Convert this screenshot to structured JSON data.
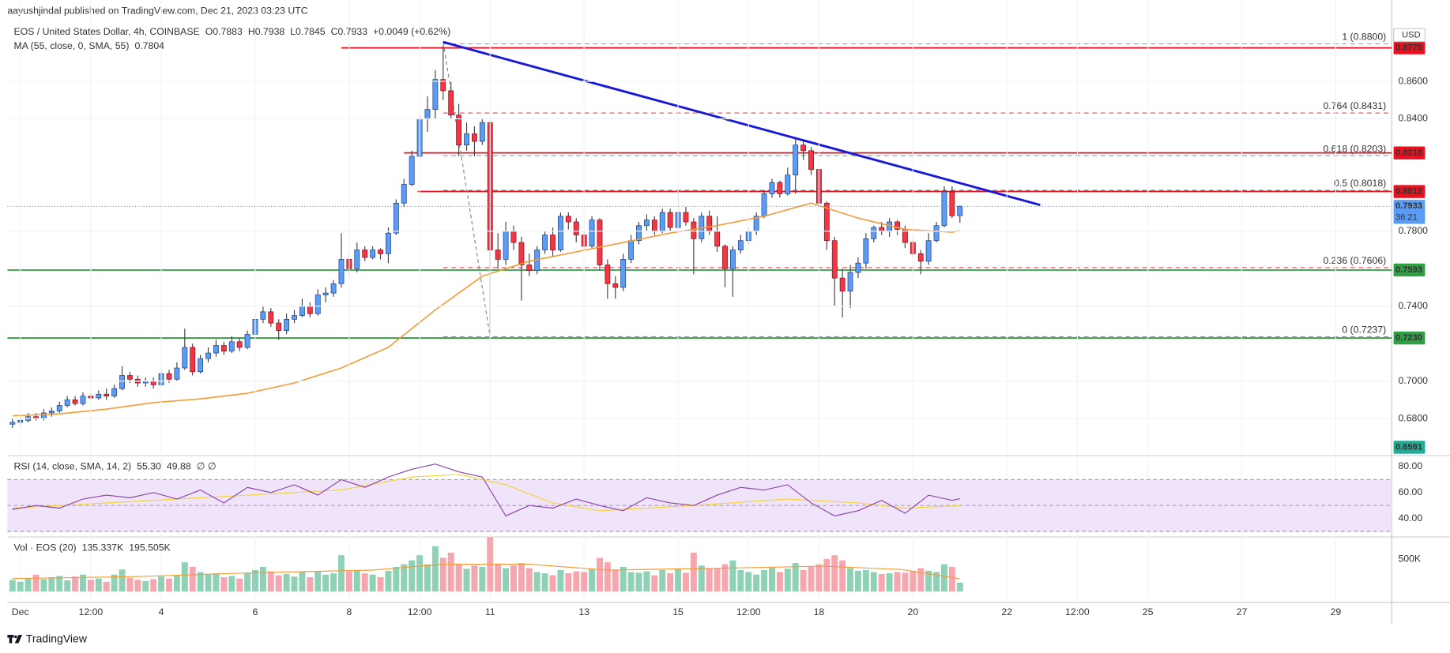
{
  "header": {
    "published": "aayushjindal published on TradingView.com, Dec 21, 2023 03:23 UTC"
  },
  "footer": {
    "brand": "TradingView"
  },
  "chart_data": {
    "type": "candlestick",
    "title": "EOS / United States Dollar, 4h, COINBASE",
    "ohlc_text": [
      "O0.7883",
      "H0.7938",
      "L0.7845",
      "C0.7933"
    ],
    "change_text": "+0.0049 (+0.62%)",
    "currency": "USD",
    "xlim": [
      -6.6,
      700.6
    ],
    "xticks": [
      {
        "value": 0,
        "label": "Dec"
      },
      {
        "value": 36,
        "label": "12:00"
      },
      {
        "value": 72,
        "label": "4"
      },
      {
        "value": 120,
        "label": "6"
      },
      {
        "value": 168,
        "label": "8"
      },
      {
        "value": 204,
        "label": "12:00"
      },
      {
        "value": 240,
        "label": "11"
      },
      {
        "value": 288,
        "label": "13"
      },
      {
        "value": 336,
        "label": "15"
      },
      {
        "value": 372,
        "label": "12:00"
      },
      {
        "value": 408,
        "label": "18"
      },
      {
        "value": 456,
        "label": "20"
      },
      {
        "value": 504,
        "label": "22"
      },
      {
        "value": 540,
        "label": "12:00"
      },
      {
        "value": 576,
        "label": "25"
      },
      {
        "value": 624,
        "label": "27"
      },
      {
        "value": 672,
        "label": "29"
      }
    ],
    "ylim": [
      0.6617,
      0.8837
    ],
    "yticks": [
      {
        "value": 0.86,
        "label": "0.8600"
      },
      {
        "value": 0.84,
        "label": "0.8400"
      },
      {
        "value": 0.78,
        "label": "0.7800"
      },
      {
        "value": 0.74,
        "label": "0.7400"
      },
      {
        "value": 0.7,
        "label": "0.7000"
      },
      {
        "value": 0.68,
        "label": "0.6800"
      }
    ],
    "up_color": "#5b9cf6",
    "down_color": "#f23645",
    "x": [
      -4,
      0,
      4,
      8,
      12,
      16,
      20,
      24,
      28,
      32,
      36,
      40,
      44,
      48,
      52,
      56,
      60,
      64,
      68,
      72,
      76,
      80,
      84,
      88,
      92,
      96,
      100,
      104,
      108,
      112,
      116,
      120,
      124,
      128,
      132,
      136,
      140,
      144,
      148,
      152,
      156,
      160,
      164,
      168,
      172,
      176,
      180,
      184,
      188,
      192,
      196,
      200,
      204,
      208,
      212,
      216,
      220,
      224,
      228,
      232,
      236,
      240,
      244,
      248,
      252,
      256,
      260,
      264,
      268,
      272,
      276,
      280,
      284,
      288,
      292,
      296,
      300,
      304,
      308,
      312,
      316,
      320,
      324,
      328,
      332,
      336,
      340,
      344,
      348,
      352,
      356,
      360,
      364,
      368,
      372,
      376,
      380,
      384,
      388,
      392,
      396,
      400,
      404,
      408,
      412,
      416,
      420,
      424,
      428,
      432,
      436,
      440,
      444,
      448,
      452,
      456,
      460,
      464,
      468,
      472,
      476,
      480
    ],
    "candles": [
      [
        0.677,
        0.68,
        0.675,
        0.678
      ],
      [
        0.678,
        0.681,
        0.676,
        0.679
      ],
      [
        0.679,
        0.683,
        0.678,
        0.681
      ],
      [
        0.681,
        0.683,
        0.679,
        0.68
      ],
      [
        0.68,
        0.685,
        0.679,
        0.683
      ],
      [
        0.683,
        0.686,
        0.681,
        0.684
      ],
      [
        0.684,
        0.689,
        0.683,
        0.687
      ],
      [
        0.687,
        0.692,
        0.686,
        0.69
      ],
      [
        0.69,
        0.692,
        0.687,
        0.688
      ],
      [
        0.688,
        0.694,
        0.687,
        0.692
      ],
      [
        0.692,
        0.694,
        0.69,
        0.691
      ],
      [
        0.691,
        0.695,
        0.69,
        0.693
      ],
      [
        0.693,
        0.696,
        0.69,
        0.692
      ],
      [
        0.692,
        0.698,
        0.691,
        0.696
      ],
      [
        0.696,
        0.708,
        0.695,
        0.703
      ],
      [
        0.703,
        0.705,
        0.699,
        0.701
      ],
      [
        0.701,
        0.703,
        0.697,
        0.699
      ],
      [
        0.699,
        0.702,
        0.697,
        0.7
      ],
      [
        0.7,
        0.702,
        0.696,
        0.698
      ],
      [
        0.698,
        0.707,
        0.697,
        0.704
      ],
      [
        0.704,
        0.706,
        0.699,
        0.701
      ],
      [
        0.701,
        0.71,
        0.7,
        0.707
      ],
      [
        0.707,
        0.728,
        0.706,
        0.718
      ],
      [
        0.718,
        0.72,
        0.703,
        0.705
      ],
      [
        0.705,
        0.714,
        0.704,
        0.712
      ],
      [
        0.712,
        0.718,
        0.71,
        0.715
      ],
      [
        0.715,
        0.722,
        0.713,
        0.719
      ],
      [
        0.719,
        0.721,
        0.714,
        0.716
      ],
      [
        0.716,
        0.724,
        0.715,
        0.721
      ],
      [
        0.721,
        0.723,
        0.716,
        0.718
      ],
      [
        0.718,
        0.727,
        0.717,
        0.725
      ],
      [
        0.725,
        0.736,
        0.724,
        0.733
      ],
      [
        0.733,
        0.74,
        0.731,
        0.737
      ],
      [
        0.737,
        0.739,
        0.729,
        0.731
      ],
      [
        0.731,
        0.733,
        0.722,
        0.727
      ],
      [
        0.727,
        0.736,
        0.725,
        0.733
      ],
      [
        0.733,
        0.738,
        0.731,
        0.735
      ],
      [
        0.735,
        0.744,
        0.734,
        0.74
      ],
      [
        0.74,
        0.742,
        0.734,
        0.736
      ],
      [
        0.736,
        0.749,
        0.735,
        0.746
      ],
      [
        0.746,
        0.75,
        0.742,
        0.747
      ],
      [
        0.747,
        0.754,
        0.745,
        0.752
      ],
      [
        0.752,
        0.779,
        0.75,
        0.765
      ],
      [
        0.765,
        0.768,
        0.756,
        0.76
      ],
      [
        0.76,
        0.774,
        0.758,
        0.77
      ],
      [
        0.77,
        0.772,
        0.764,
        0.766
      ],
      [
        0.766,
        0.772,
        0.765,
        0.77
      ],
      [
        0.77,
        0.771,
        0.765,
        0.768
      ],
      [
        0.768,
        0.782,
        0.763,
        0.779
      ],
      [
        0.779,
        0.797,
        0.778,
        0.795
      ],
      [
        0.795,
        0.808,
        0.793,
        0.805
      ],
      [
        0.805,
        0.823,
        0.804,
        0.82
      ],
      [
        0.82,
        0.842,
        0.819,
        0.84
      ],
      [
        0.84,
        0.852,
        0.833,
        0.845
      ],
      [
        0.845,
        0.866,
        0.84,
        0.861
      ],
      [
        0.861,
        0.879,
        0.85,
        0.855
      ],
      [
        0.855,
        0.86,
        0.84,
        0.842
      ],
      [
        0.842,
        0.848,
        0.82,
        0.826
      ],
      [
        0.826,
        0.838,
        0.823,
        0.832
      ],
      [
        0.832,
        0.836,
        0.82,
        0.828
      ],
      [
        0.828,
        0.84,
        0.826,
        0.838
      ],
      [
        0.838,
        0.839,
        0.724,
        0.77
      ],
      [
        0.77,
        0.779,
        0.76,
        0.765
      ],
      [
        0.765,
        0.785,
        0.762,
        0.78
      ],
      [
        0.78,
        0.783,
        0.77,
        0.774
      ],
      [
        0.774,
        0.777,
        0.743,
        0.762
      ],
      [
        0.762,
        0.768,
        0.756,
        0.759
      ],
      [
        0.759,
        0.772,
        0.757,
        0.77
      ],
      [
        0.77,
        0.78,
        0.768,
        0.778
      ],
      [
        0.778,
        0.782,
        0.766,
        0.77
      ],
      [
        0.77,
        0.79,
        0.769,
        0.788
      ],
      [
        0.788,
        0.79,
        0.781,
        0.785
      ],
      [
        0.785,
        0.787,
        0.774,
        0.778
      ],
      [
        0.778,
        0.78,
        0.77,
        0.772
      ],
      [
        0.772,
        0.788,
        0.771,
        0.786
      ],
      [
        0.786,
        0.787,
        0.759,
        0.762
      ],
      [
        0.762,
        0.765,
        0.744,
        0.752
      ],
      [
        0.752,
        0.756,
        0.744,
        0.75
      ],
      [
        0.75,
        0.768,
        0.748,
        0.765
      ],
      [
        0.765,
        0.778,
        0.763,
        0.775
      ],
      [
        0.775,
        0.785,
        0.773,
        0.783
      ],
      [
        0.783,
        0.789,
        0.78,
        0.786
      ],
      [
        0.786,
        0.788,
        0.778,
        0.78
      ],
      [
        0.78,
        0.792,
        0.779,
        0.79
      ],
      [
        0.79,
        0.792,
        0.78,
        0.782
      ],
      [
        0.782,
        0.801,
        0.78,
        0.79
      ],
      [
        0.79,
        0.793,
        0.783,
        0.785
      ],
      [
        0.785,
        0.787,
        0.757,
        0.776
      ],
      [
        0.776,
        0.79,
        0.774,
        0.788
      ],
      [
        0.788,
        0.791,
        0.778,
        0.78
      ],
      [
        0.78,
        0.788,
        0.769,
        0.772
      ],
      [
        0.772,
        0.773,
        0.75,
        0.76
      ],
      [
        0.76,
        0.772,
        0.745,
        0.77
      ],
      [
        0.77,
        0.778,
        0.768,
        0.775
      ],
      [
        0.775,
        0.782,
        0.773,
        0.78
      ],
      [
        0.78,
        0.79,
        0.778,
        0.788
      ],
      [
        0.788,
        0.802,
        0.787,
        0.8
      ],
      [
        0.8,
        0.808,
        0.798,
        0.806
      ],
      [
        0.806,
        0.807,
        0.798,
        0.8
      ],
      [
        0.8,
        0.814,
        0.799,
        0.81
      ],
      [
        0.81,
        0.829,
        0.8,
        0.826
      ],
      [
        0.826,
        0.829,
        0.818,
        0.823
      ],
      [
        0.823,
        0.825,
        0.81,
        0.813
      ],
      [
        0.813,
        0.814,
        0.792,
        0.795
      ],
      [
        0.795,
        0.796,
        0.77,
        0.775
      ],
      [
        0.775,
        0.777,
        0.74,
        0.755
      ],
      [
        0.755,
        0.76,
        0.734,
        0.748
      ],
      [
        0.748,
        0.762,
        0.739,
        0.758
      ],
      [
        0.758,
        0.766,
        0.755,
        0.763
      ],
      [
        0.763,
        0.779,
        0.76,
        0.776
      ],
      [
        0.776,
        0.783,
        0.774,
        0.782
      ],
      [
        0.782,
        0.785,
        0.778,
        0.78
      ],
      [
        0.78,
        0.787,
        0.777,
        0.785
      ],
      [
        0.785,
        0.786,
        0.778,
        0.781
      ],
      [
        0.781,
        0.783,
        0.771,
        0.774
      ],
      [
        0.774,
        0.776,
        0.766,
        0.768
      ],
      [
        0.768,
        0.77,
        0.757,
        0.764
      ],
      [
        0.764,
        0.779,
        0.762,
        0.775
      ],
      [
        0.775,
        0.785,
        0.774,
        0.783
      ],
      [
        0.783,
        0.804,
        0.782,
        0.801
      ],
      [
        0.801,
        0.804,
        0.787,
        0.7883
      ],
      [
        0.7883,
        0.7938,
        0.7845,
        0.7933
      ]
    ],
    "ma": {
      "name": "MA (55, close, 0, SMA, 55)",
      "last_label": "0.7804",
      "color": "#f39c3a",
      "x": [
        -4,
        20,
        44,
        68,
        92,
        116,
        140,
        164,
        188,
        212,
        236,
        260,
        284,
        308,
        332,
        356,
        380,
        404,
        428,
        452,
        476,
        480
      ],
      "values": [
        0.6815,
        0.6825,
        0.685,
        0.6885,
        0.6905,
        0.6935,
        0.699,
        0.707,
        0.718,
        0.738,
        0.756,
        0.764,
        0.769,
        0.774,
        0.779,
        0.783,
        0.788,
        0.795,
        0.787,
        0.781,
        0.7795,
        0.7804
      ]
    },
    "trendline": {
      "color": "#1a1ad6",
      "x": [
        216,
        521
      ],
      "values": [
        0.881,
        0.794
      ]
    },
    "fib": {
      "x": [
        216,
        240
      ],
      "values": [
        0.881,
        0.7237
      ],
      "levels": [
        {
          "value": 0.88,
          "label": "1 (0.8800)",
          "color": "#5b8fd6"
        },
        {
          "value": 0.8431,
          "label": "0.764 (0.8431)",
          "color": "#e0323f"
        },
        {
          "value": 0.8203,
          "label": "0.618 (0.8203)",
          "color": "#26a69a"
        },
        {
          "value": 0.8018,
          "label": "0.5 (0.8018)",
          "color": "#555555"
        },
        {
          "value": 0.7606,
          "label": "0.236 (0.7606)",
          "color": "#e0323f"
        },
        {
          "value": 0.7237,
          "label": "0 (0.7237)",
          "color": "#777777"
        }
      ]
    },
    "levels": [
      {
        "value": 0.8779,
        "label": "0.8779",
        "color": "#e8111f",
        "from": 164
      },
      {
        "value": 0.8218,
        "label": "0.8218",
        "color": "#e8111f",
        "from": 196
      },
      {
        "value": 0.8012,
        "label": "0.8012",
        "color": "#e8111f",
        "from": 203
      },
      {
        "value": 0.7593,
        "label": "0.7593",
        "color": "#2f9e44"
      },
      {
        "value": 0.723,
        "label": "0.7230",
        "color": "#2f9e44"
      }
    ],
    "last_price": {
      "value": 0.7933,
      "label": "0.7933",
      "countdown": "36:21",
      "color": "#5b9cf6"
    },
    "low_badge": {
      "value": 0.6591,
      "label": "0.6591",
      "color": "#22ab94"
    },
    "rsi": {
      "name": "RSI (14, close, SMA, 14, 2)",
      "last_label": "55.30",
      "sma_label": "49.88",
      "flags": "∅ ∅",
      "color": "#8e44ad",
      "ylim": [
        28.6,
        87.1
      ],
      "yticks": [
        {
          "value": 80,
          "label": "80.00"
        },
        {
          "value": 60,
          "label": "60.00"
        },
        {
          "value": 40,
          "label": "40.00"
        }
      ],
      "band": [
        30,
        70
      ],
      "mid": 50,
      "x": [
        -4,
        8,
        20,
        32,
        44,
        56,
        68,
        80,
        92,
        104,
        116,
        128,
        140,
        152,
        164,
        176,
        188,
        200,
        212,
        224,
        236,
        248,
        260,
        272,
        284,
        296,
        308,
        320,
        332,
        344,
        356,
        368,
        380,
        392,
        404,
        416,
        428,
        440,
        452,
        464,
        476,
        480
      ],
      "values": [
        47,
        50,
        48,
        55,
        58,
        56,
        60,
        55,
        62,
        52,
        64,
        60,
        66,
        58,
        70,
        64,
        72,
        78,
        82,
        76,
        72,
        42,
        50,
        48,
        55,
        50,
        46,
        56,
        52,
        50,
        58,
        64,
        62,
        66,
        52,
        42,
        46,
        54,
        44,
        58,
        54,
        55.3
      ],
      "sma": {
        "color": "#f5d33b",
        "x": [
          -4,
          92,
          164,
          200,
          224,
          248,
          272,
          296,
          344,
          392,
          428,
          452,
          480
        ],
        "values": [
          48,
          56,
          62,
          72,
          74,
          66,
          52,
          46,
          50,
          55,
          52,
          48,
          49.88
        ]
      }
    },
    "volume": {
      "name": "Vol · EOS (20)",
      "last_label": "135.337K",
      "ma_label": "195.505K",
      "ylim": [
        0,
        714000
      ],
      "yticks": [
        {
          "value": 500000,
          "label": "500K"
        }
      ],
      "up_color": "#8fd1b5",
      "down_color": "#f5a6ae",
      "values": [
        180000,
        150000,
        200000,
        260000,
        190000,
        220000,
        240000,
        170000,
        230000,
        260000,
        180000,
        200000,
        150000,
        260000,
        340000,
        210000,
        180000,
        160000,
        190000,
        230000,
        200000,
        250000,
        450000,
        380000,
        300000,
        260000,
        280000,
        220000,
        240000,
        200000,
        290000,
        330000,
        380000,
        310000,
        250000,
        270000,
        230000,
        300000,
        220000,
        310000,
        260000,
        280000,
        560000,
        310000,
        330000,
        280000,
        260000,
        220000,
        320000,
        380000,
        420000,
        480000,
        560000,
        420000,
        700000,
        520000,
        600000,
        430000,
        350000,
        400000,
        380000,
        840000,
        430000,
        360000,
        400000,
        440000,
        360000,
        300000,
        280000,
        250000,
        330000,
        280000,
        310000,
        300000,
        350000,
        520000,
        450000,
        330000,
        380000,
        300000,
        290000,
        310000,
        250000,
        330000,
        280000,
        350000,
        290000,
        600000,
        400000,
        350000,
        360000,
        420000,
        480000,
        330000,
        300000,
        260000,
        330000,
        370000,
        300000,
        350000,
        440000,
        330000,
        380000,
        420000,
        500000,
        560000,
        480000,
        360000,
        320000,
        330000,
        300000,
        270000,
        280000,
        300000,
        290000,
        320000,
        360000,
        320000,
        300000,
        420000,
        380000,
        135337
      ],
      "ma": {
        "color": "#f39c3a",
        "x": [
          -4,
          60,
          120,
          180,
          216,
          260,
          300,
          360,
          410,
          450,
          480
        ],
        "values": [
          200000,
          230000,
          290000,
          330000,
          420000,
          420000,
          330000,
          360000,
          390000,
          340000,
          195505
        ]
      }
    }
  }
}
